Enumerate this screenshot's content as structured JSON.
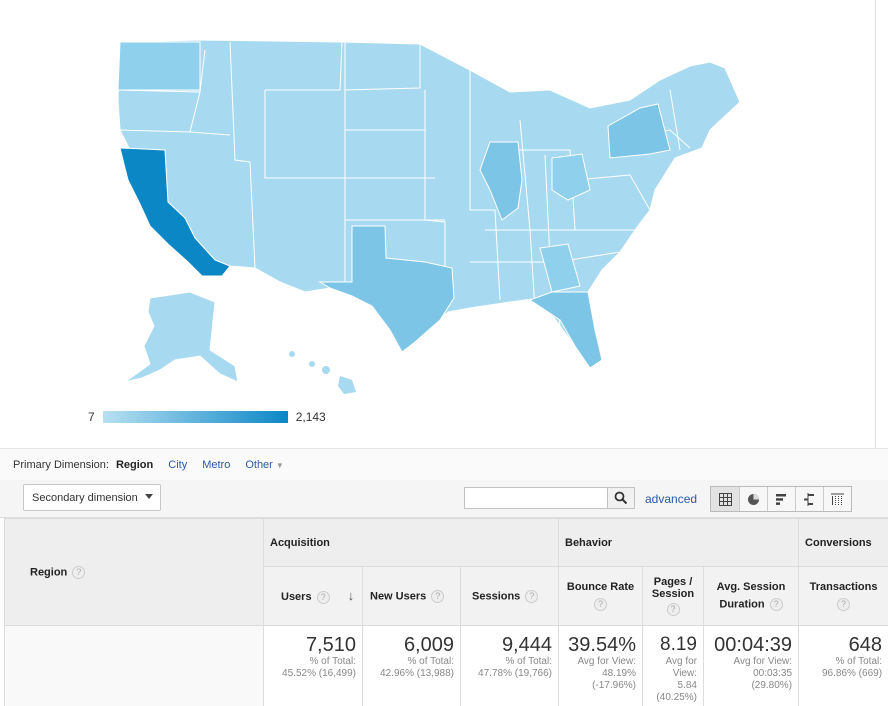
{
  "map": {
    "legend_min": "7",
    "legend_max": "2,143",
    "color_low": "#b8e0f2",
    "color_high": "#0b87c6"
  },
  "dimension_bar": {
    "label": "Primary Dimension:",
    "active": "Region",
    "options": [
      "City",
      "Metro",
      "Other"
    ]
  },
  "toolbar": {
    "secondary_dimension": "Secondary dimension",
    "search_placeholder": "",
    "advanced": "advanced",
    "view_icons": [
      "table-view-icon",
      "pie-view-icon",
      "performance-view-icon",
      "comparison-view-icon",
      "pivot-view-icon"
    ]
  },
  "table": {
    "region_header": "Region",
    "groups": {
      "acquisition": "Acquisition",
      "behavior": "Behavior",
      "conversions": "Conversions"
    },
    "columns": {
      "users": "Users",
      "new_users": "New Users",
      "sessions": "Sessions",
      "bounce_rate": "Bounce Rate",
      "pages_session_1": "Pages /",
      "pages_session_2": "Session",
      "avg_session_1": "Avg. Session",
      "avg_session_2": "Duration",
      "transactions": "Transactions"
    },
    "totals": {
      "users": {
        "value": "7,510",
        "sub1": "% of Total:",
        "sub2": "45.52% (16,499)"
      },
      "new_users": {
        "value": "6,009",
        "sub1": "% of Total:",
        "sub2": "42.96% (13,988)"
      },
      "sessions": {
        "value": "9,444",
        "sub1": "% of Total:",
        "sub2": "47.78% (19,766)"
      },
      "bounce_rate": {
        "value": "39.54%",
        "sub1": "Avg for View:",
        "sub2": "48.19%",
        "sub3": "(-17.96%)"
      },
      "pages_session": {
        "value": "8.19",
        "sub1": "Avg for",
        "sub2": "View:",
        "sub3": "5.84",
        "sub4": "(40.25%)"
      },
      "avg_session": {
        "value": "00:04:39",
        "sub1": "Avg for View:",
        "sub2": "00:03:35",
        "sub3": "(29.80%)"
      },
      "transactions": {
        "value": "648",
        "sub1": "% of Total:",
        "sub2": "96.86% (669)"
      }
    }
  }
}
